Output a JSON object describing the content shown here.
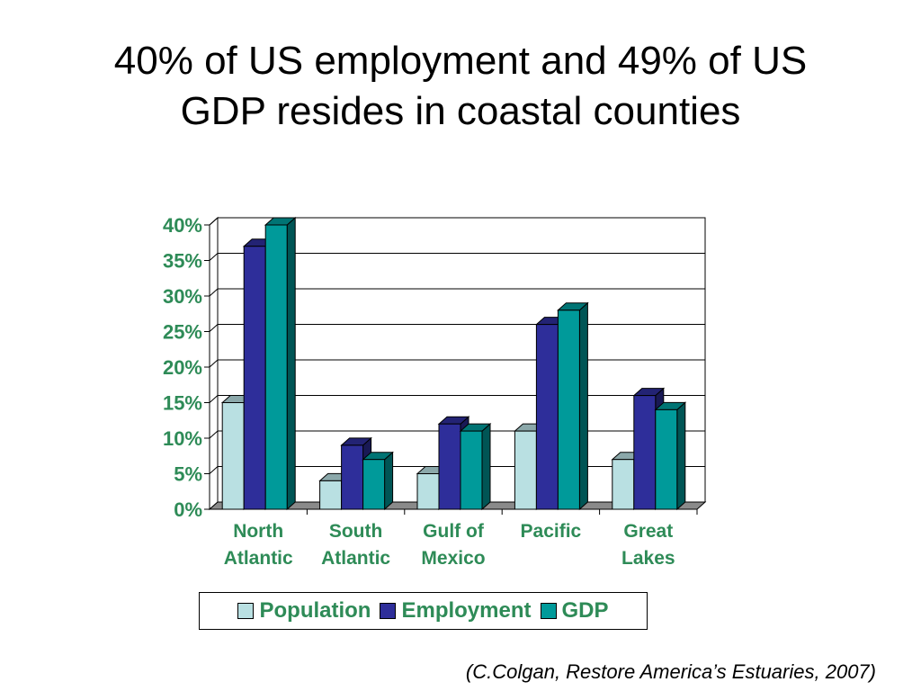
{
  "title": {
    "line1": "40% of US employment and 49% of US",
    "line2": "GDP resides in coastal counties"
  },
  "citation": "(C.Colgan, Restore America’s Estuaries, 2007)",
  "chart_data": {
    "type": "bar",
    "title": "",
    "xlabel": "",
    "ylabel": "",
    "ylim": [
      0,
      40
    ],
    "yticks": [
      "0%",
      "5%",
      "10%",
      "15%",
      "20%",
      "25%",
      "30%",
      "35%",
      "40%"
    ],
    "categories": [
      [
        "North",
        "Atlantic"
      ],
      [
        "South",
        "Atlantic"
      ],
      [
        "Gulf of",
        "Mexico"
      ],
      [
        "Pacific"
      ],
      [
        "Great",
        "Lakes"
      ]
    ],
    "series": [
      {
        "name": "Population",
        "values": [
          15,
          4,
          5,
          11,
          7
        ],
        "color": "#b9e0e2"
      },
      {
        "name": "Employment",
        "values": [
          37,
          9,
          12,
          26,
          16
        ],
        "color": "#2e2e9a"
      },
      {
        "name": "GDP",
        "values": [
          40,
          7,
          11,
          28,
          14
        ],
        "color": "#009a9a"
      }
    ],
    "grid": true,
    "legend_position": "bottom",
    "label_color": "#2e8b57",
    "style": "3d-clustered-bar"
  }
}
